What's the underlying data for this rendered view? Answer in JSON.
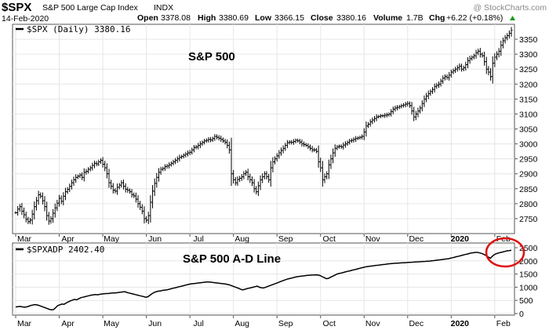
{
  "header": {
    "symbol": "$SPX",
    "name": "S&P 500 Large Cap Index",
    "exchange": "INDX",
    "date": "14-Feb-2020",
    "open_label": "Open",
    "open_value": "3378.08",
    "high_label": "High",
    "high_value": "3380.69",
    "low_label": "Low",
    "low_value": "3366.15",
    "close_label": "Close",
    "close_value": "3380.16",
    "volume_label": "Volume",
    "volume_value": "1.7B",
    "chg_label": "Chg",
    "chg_value": "+6.22 (+0.18%)",
    "watermark": "@ StockCharts.com"
  },
  "chart_data": [
    {
      "type": "ohlc",
      "legend": "$SPX (Daily) 3380.16",
      "title": "S&P 500",
      "ylim": [
        2700,
        3400
      ],
      "yticks": [
        2750,
        2800,
        2850,
        2900,
        2950,
        3000,
        3050,
        3100,
        3150,
        3200,
        3250,
        3300,
        3350
      ],
      "months": [
        "Mar",
        "Apr",
        "May",
        "Jun",
        "Jul",
        "Aug",
        "Sep",
        "Oct",
        "Nov",
        "Dec",
        "2020",
        "Feb"
      ],
      "month_start_index": [
        0,
        21,
        42,
        63,
        84,
        105,
        126,
        147,
        168,
        189,
        210,
        231
      ],
      "close": [
        2770,
        2782,
        2790,
        2775,
        2763,
        2748,
        2740,
        2745,
        2765,
        2790,
        2810,
        2830,
        2825,
        2810,
        2790,
        2760,
        2742,
        2750,
        2768,
        2786,
        2802,
        2818,
        2808,
        2825,
        2840,
        2848,
        2858,
        2870,
        2880,
        2888,
        2892,
        2896,
        2888,
        2905,
        2908,
        2915,
        2920,
        2928,
        2935,
        2933,
        2940,
        2945,
        2932,
        2920,
        2900,
        2870,
        2858,
        2845,
        2842,
        2855,
        2862,
        2870,
        2858,
        2848,
        2845,
        2840,
        2830,
        2826,
        2815,
        2800,
        2788,
        2775,
        2750,
        2745,
        2760,
        2805,
        2842,
        2868,
        2888,
        2905,
        2915,
        2918,
        2924,
        2926,
        2930,
        2935,
        2940,
        2945,
        2950,
        2955,
        2958,
        2962,
        2966,
        2970,
        2972,
        2980,
        2988,
        2990,
        2995,
        3000,
        3005,
        3010,
        3012,
        3015,
        3013,
        3018,
        3025,
        3022,
        3019,
        3015,
        3010,
        3005,
        2995,
        2980,
        2900,
        2880,
        2870,
        2881,
        2885,
        2890,
        2900,
        2905,
        2890,
        2880,
        2870,
        2850,
        2840,
        2860,
        2880,
        2890,
        2900,
        2890,
        2880,
        2920,
        2940,
        2950,
        2960,
        2970,
        2978,
        2985,
        2995,
        3004,
        3006,
        3005,
        3008,
        3012,
        3010,
        3006,
        3000,
        2998,
        2995,
        2990,
        2985,
        2980,
        2980,
        2975,
        2940,
        2920,
        2880,
        2890,
        2900,
        2930,
        2950,
        2970,
        2985,
        2990,
        2992,
        2990,
        2996,
        3000,
        3005,
        3010,
        3012,
        3015,
        3018,
        3020,
        3022,
        3025,
        3040,
        3060,
        3066,
        3074,
        3080,
        3085,
        3090,
        3092,
        3094,
        3094,
        3096,
        3097,
        3100,
        3108,
        3116,
        3120,
        3122,
        3125,
        3128,
        3130,
        3133,
        3135,
        3128,
        3110,
        3090,
        3100,
        3110,
        3120,
        3135,
        3150,
        3160,
        3168,
        3175,
        3182,
        3192,
        3196,
        3200,
        3210,
        3220,
        3225,
        3222,
        3230,
        3240,
        3245,
        3250,
        3255,
        3260,
        3250,
        3255,
        3265,
        3278,
        3285,
        3290,
        3295,
        3305,
        3310,
        3300,
        3295,
        3275,
        3250,
        3240,
        3225,
        3270,
        3290,
        3300,
        3310,
        3330,
        3345,
        3355,
        3362,
        3370,
        3380
      ]
    },
    {
      "type": "line",
      "legend": "$SPXADP 2402.40",
      "title": "S&P 500 A-D Line",
      "ylim": [
        0,
        2500
      ],
      "yticks": [
        0,
        500,
        1000,
        1500,
        2000,
        2500
      ],
      "months": [
        "Mar",
        "Apr",
        "May",
        "Jun",
        "Jul",
        "Aug",
        "Sep",
        "Oct",
        "Nov",
        "Dec",
        "2020",
        "Feb"
      ],
      "values": [
        250,
        260,
        270,
        255,
        240,
        250,
        270,
        300,
        320,
        340,
        330,
        310,
        280,
        250,
        220,
        190,
        160,
        140,
        150,
        220,
        300,
        330,
        360,
        350,
        400,
        440,
        480,
        510,
        540,
        520,
        560,
        600,
        620,
        640,
        660,
        680,
        700,
        710,
        720,
        710,
        730,
        740,
        750,
        760,
        760,
        770,
        780,
        780,
        790,
        800,
        810,
        820,
        830,
        800,
        780,
        760,
        740,
        720,
        700,
        680,
        660,
        640,
        620,
        640,
        700,
        760,
        800,
        830,
        850,
        860,
        880,
        890,
        900,
        920,
        940,
        960,
        980,
        1000,
        1020,
        1040,
        1060,
        1080,
        1100,
        1120,
        1130,
        1140,
        1150,
        1160,
        1170,
        1180,
        1190,
        1200,
        1200,
        1190,
        1180,
        1170,
        1160,
        1150,
        1140,
        1130,
        1120,
        1100,
        1080,
        1050,
        1020,
        990,
        960,
        930,
        900,
        920,
        940,
        960,
        980,
        1000,
        1020,
        1040,
        1000,
        980,
        970,
        1000,
        1030,
        1060,
        1090,
        1120,
        1150,
        1180,
        1210,
        1240,
        1270,
        1300,
        1320,
        1340,
        1360,
        1380,
        1400,
        1410,
        1420,
        1430,
        1440,
        1450,
        1455,
        1460,
        1465,
        1470,
        1460,
        1440,
        1400,
        1360,
        1320,
        1340,
        1380,
        1420,
        1460,
        1500,
        1520,
        1540,
        1560,
        1580,
        1600,
        1620,
        1640,
        1660,
        1680,
        1700,
        1720,
        1740,
        1760,
        1780,
        1790,
        1800,
        1810,
        1820,
        1830,
        1840,
        1850,
        1860,
        1870,
        1880,
        1890,
        1900,
        1905,
        1910,
        1915,
        1920,
        1925,
        1930,
        1935,
        1940,
        1945,
        1950,
        1955,
        1960,
        1965,
        1970,
        1975,
        1980,
        1985,
        1990,
        2000,
        2010,
        2020,
        2030,
        2040,
        2050,
        2060,
        2070,
        2080,
        2100,
        2120,
        2140,
        2160,
        2180,
        2200,
        2220,
        2240,
        2260,
        2280,
        2300,
        2310,
        2320,
        2320,
        2300,
        2280,
        2240,
        2200,
        2150,
        2100,
        2180,
        2240,
        2280,
        2300,
        2320,
        2340,
        2360,
        2380,
        2390,
        2402
      ]
    }
  ]
}
